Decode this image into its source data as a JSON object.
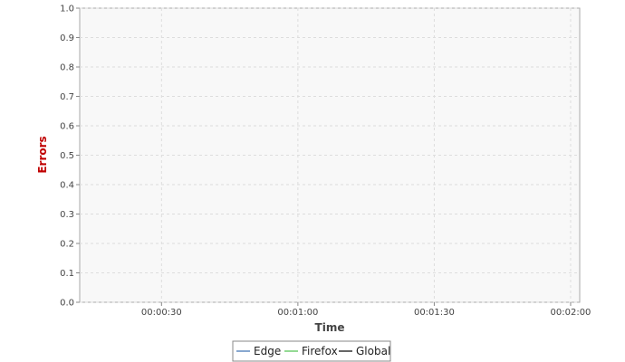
{
  "chart_data": {
    "type": "line",
    "xlabel": "Time",
    "ylabel": "Errors",
    "ylim": [
      0.0,
      1.0
    ],
    "yticks": [
      "0.0",
      "0.1",
      "0.2",
      "0.3",
      "0.4",
      "0.5",
      "0.6",
      "0.7",
      "0.8",
      "0.9",
      "1.0"
    ],
    "xlim_seconds": [
      12,
      122
    ],
    "xticks": [
      {
        "value": 30,
        "label": "00:00:30"
      },
      {
        "value": 60,
        "label": "00:01:00"
      },
      {
        "value": 90,
        "label": "00:01:30"
      },
      {
        "value": 120,
        "label": "00:02:00"
      }
    ],
    "grid": true,
    "legend_position": "bottom-center",
    "series": [
      {
        "name": "Edge",
        "color": "#3a6fb0",
        "points": []
      },
      {
        "name": "Firefox",
        "color": "#4cc24c",
        "points": []
      },
      {
        "name": "Global",
        "color": "#000000",
        "points": []
      }
    ],
    "colors": {
      "plot_background": "#f8f8f8",
      "gridline": "#dddddd",
      "axis_title_y": "#c00000",
      "axis_title_x": "#444444",
      "frame": "#aaaaaa"
    }
  }
}
